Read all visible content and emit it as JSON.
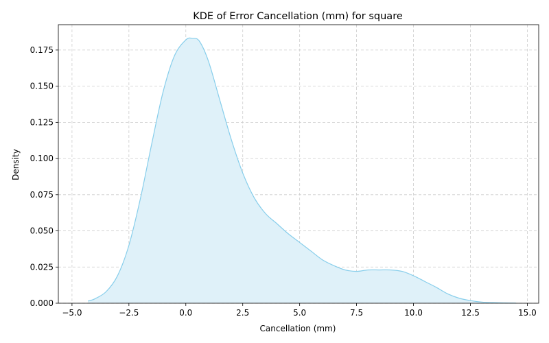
{
  "chart_data": {
    "type": "area",
    "title": "KDE of Error Cancellation (mm) for square",
    "xlabel": "Cancellation (mm)",
    "ylabel": "Density",
    "xlim": [
      -5.6,
      15.5
    ],
    "ylim": [
      0,
      0.1925
    ],
    "grid": true,
    "legend": "none",
    "colors": {
      "line": "#87ceeb",
      "fill": "#dff1f9",
      "grid": "#cccccc"
    },
    "x_ticks": [
      {
        "value": -5.0,
        "label": "−5.0"
      },
      {
        "value": -2.5,
        "label": "−2.5"
      },
      {
        "value": 0.0,
        "label": "0.0"
      },
      {
        "value": 2.5,
        "label": "2.5"
      },
      {
        "value": 5.0,
        "label": "5.0"
      },
      {
        "value": 7.5,
        "label": "7.5"
      },
      {
        "value": 10.0,
        "label": "10.0"
      },
      {
        "value": 12.5,
        "label": "12.5"
      },
      {
        "value": 15.0,
        "label": "15.0"
      }
    ],
    "y_ticks": [
      {
        "value": 0.0,
        "label": "0.000"
      },
      {
        "value": 0.025,
        "label": "0.025"
      },
      {
        "value": 0.05,
        "label": "0.050"
      },
      {
        "value": 0.075,
        "label": "0.075"
      },
      {
        "value": 0.1,
        "label": "0.100"
      },
      {
        "value": 0.125,
        "label": "0.125"
      },
      {
        "value": 0.15,
        "label": "0.150"
      },
      {
        "value": 0.175,
        "label": "0.175"
      }
    ],
    "series": [
      {
        "x": [
          -4.3,
          -4.0,
          -3.5,
          -3.0,
          -2.5,
          -2.0,
          -1.5,
          -1.0,
          -0.5,
          0.0,
          0.3,
          0.6,
          1.0,
          1.5,
          2.0,
          2.5,
          3.0,
          3.5,
          4.0,
          4.5,
          5.0,
          5.5,
          6.0,
          6.5,
          7.0,
          7.5,
          8.0,
          8.5,
          9.0,
          9.5,
          10.0,
          10.5,
          11.0,
          11.5,
          12.0,
          12.5,
          13.0,
          13.5,
          14.0,
          14.5
        ],
        "y": [
          0.0015,
          0.003,
          0.008,
          0.019,
          0.04,
          0.072,
          0.11,
          0.146,
          0.171,
          0.182,
          0.183,
          0.181,
          0.167,
          0.14,
          0.113,
          0.09,
          0.073,
          0.062,
          0.055,
          0.048,
          0.042,
          0.036,
          0.03,
          0.026,
          0.023,
          0.022,
          0.023,
          0.023,
          0.023,
          0.022,
          0.019,
          0.015,
          0.011,
          0.0065,
          0.0035,
          0.0018,
          0.0008,
          0.0004,
          0.0002,
          0.0001
        ]
      }
    ]
  }
}
